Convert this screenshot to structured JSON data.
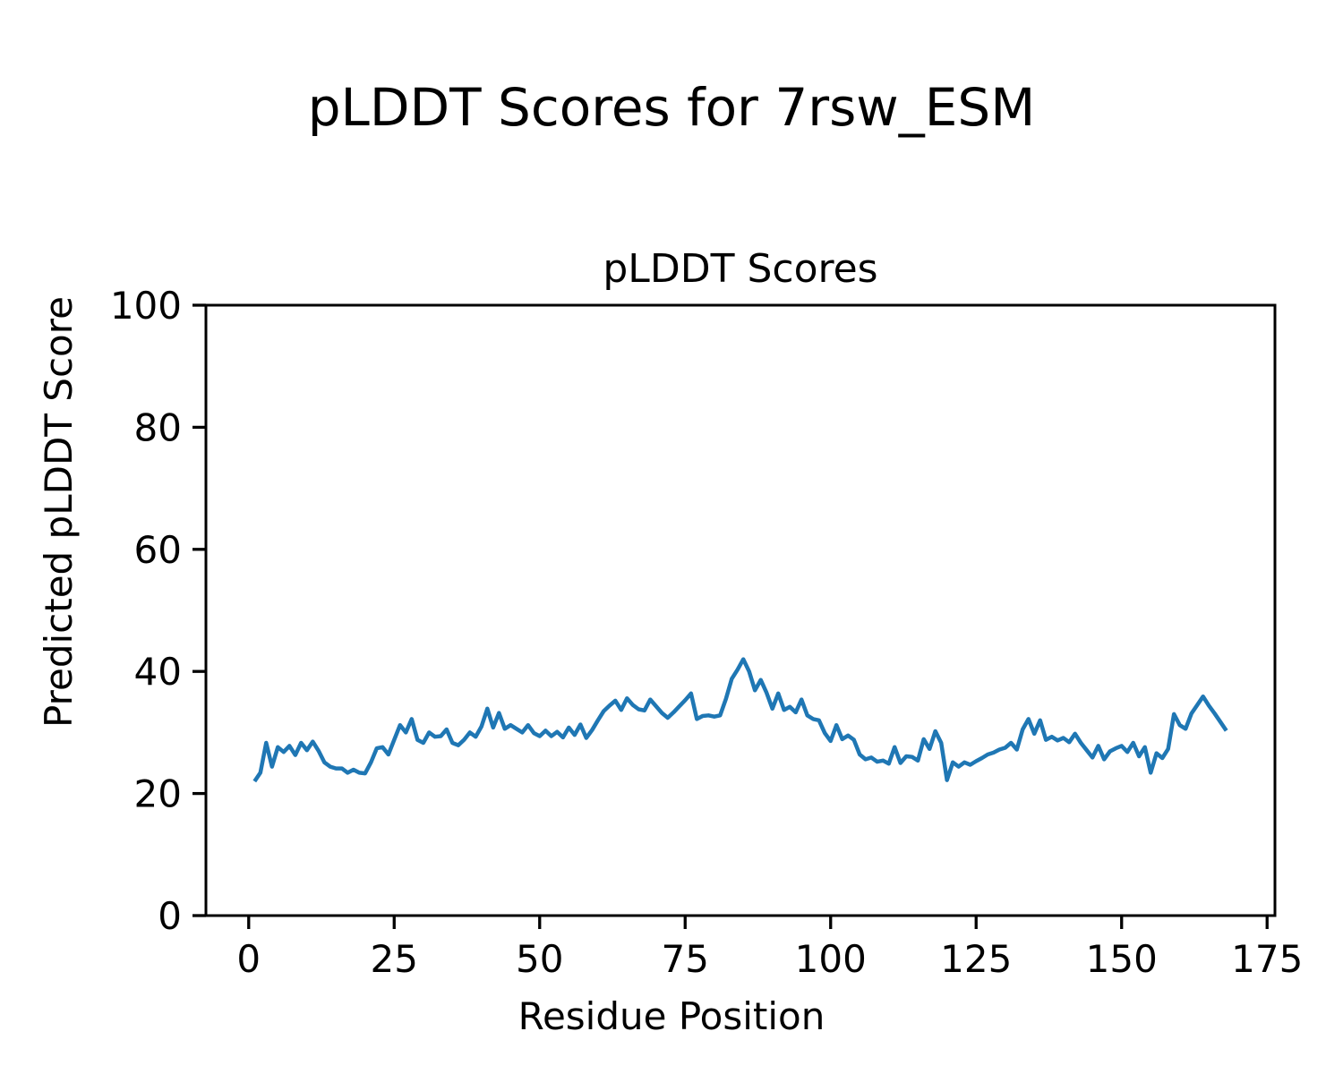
{
  "figure_title": "pLDDT Scores for 7rsw_ESM",
  "colors": {
    "line": "#1f77b4",
    "text": "#000000",
    "background": "#ffffff",
    "axes": "#000000"
  },
  "chart_data": {
    "type": "line",
    "title": "pLDDT Scores",
    "xlabel": "Residue Position",
    "ylabel": "Predicted pLDDT Score",
    "xlim": [
      -7.35,
      176.35
    ],
    "ylim": [
      0,
      100
    ],
    "x_ticks": [
      0,
      25,
      50,
      75,
      100,
      125,
      150,
      175
    ],
    "y_ticks": [
      0,
      20,
      40,
      60,
      80,
      100
    ],
    "grid": false,
    "legend_position": "none",
    "series": [
      {
        "name": "pLDDT",
        "color": "#1f77b4",
        "x": [
          1,
          2,
          3,
          4,
          5,
          6,
          7,
          8,
          9,
          10,
          11,
          12,
          13,
          14,
          15,
          16,
          17,
          18,
          19,
          20,
          21,
          22,
          23,
          24,
          25,
          26,
          27,
          28,
          29,
          30,
          31,
          32,
          33,
          34,
          35,
          36,
          37,
          38,
          39,
          40,
          41,
          42,
          43,
          44,
          45,
          46,
          47,
          48,
          49,
          50,
          51,
          52,
          53,
          54,
          55,
          56,
          57,
          58,
          59,
          60,
          61,
          62,
          63,
          64,
          65,
          66,
          67,
          68,
          69,
          70,
          71,
          72,
          73,
          74,
          75,
          76,
          77,
          78,
          79,
          80,
          81,
          82,
          83,
          84,
          85,
          86,
          87,
          88,
          89,
          90,
          91,
          92,
          93,
          94,
          95,
          96,
          97,
          98,
          99,
          100,
          101,
          102,
          103,
          104,
          105,
          106,
          107,
          108,
          109,
          110,
          111,
          112,
          113,
          114,
          115,
          116,
          117,
          118,
          119,
          120,
          121,
          122,
          123,
          124,
          125,
          126,
          127,
          128,
          129,
          130,
          131,
          132,
          133,
          134,
          135,
          136,
          137,
          138,
          139,
          140,
          141,
          142,
          143,
          144,
          145,
          146,
          147,
          148,
          149,
          150,
          151,
          152,
          153,
          154,
          155,
          156,
          157,
          158,
          159,
          160,
          161,
          162,
          163,
          164,
          165,
          166,
          167,
          168
        ],
        "y": [
          22.0,
          23.4,
          28.3,
          24.4,
          27.6,
          26.8,
          27.8,
          26.3,
          28.3,
          27.1,
          28.5,
          27.0,
          25.1,
          24.4,
          24.1,
          24.1,
          23.4,
          23.9,
          23.4,
          23.3,
          25.1,
          27.4,
          27.6,
          26.4,
          28.8,
          31.2,
          30.0,
          32.2,
          28.8,
          28.3,
          30.0,
          29.3,
          29.4,
          30.5,
          28.3,
          27.9,
          28.8,
          30.0,
          29.3,
          31.0,
          33.9,
          30.8,
          33.2,
          30.6,
          31.2,
          30.6,
          30.0,
          31.2,
          29.9,
          29.4,
          30.3,
          29.4,
          30.1,
          29.2,
          30.8,
          29.6,
          31.3,
          29.1,
          30.4,
          32.0,
          33.5,
          34.4,
          35.2,
          33.7,
          35.6,
          34.5,
          33.8,
          33.6,
          35.4,
          34.3,
          33.2,
          32.4,
          33.3,
          34.3,
          35.3,
          36.4,
          32.2,
          32.7,
          32.8,
          32.6,
          32.8,
          35.5,
          38.8,
          40.3,
          42.0,
          40.0,
          36.9,
          38.6,
          36.5,
          33.9,
          36.4,
          33.7,
          34.2,
          33.3,
          35.4,
          32.8,
          32.2,
          32.0,
          29.9,
          28.6,
          31.2,
          28.9,
          29.5,
          28.8,
          26.4,
          25.6,
          25.9,
          25.2,
          25.4,
          24.9,
          27.6,
          25.0,
          26.1,
          26.0,
          25.4,
          28.9,
          27.3,
          30.2,
          28.3,
          22.2,
          25.1,
          24.4,
          25.1,
          24.7,
          25.3,
          25.8,
          26.4,
          26.7,
          27.2,
          27.5,
          28.3,
          27.2,
          30.5,
          32.2,
          29.8,
          32.0,
          28.8,
          29.3,
          28.7,
          29.1,
          28.4,
          29.8,
          28.3,
          27.1,
          25.9,
          27.8,
          25.6,
          26.9,
          27.4,
          27.8,
          26.8,
          28.3,
          26.1,
          27.6,
          23.4,
          26.6,
          25.8,
          27.3,
          33.0,
          31.2,
          30.6,
          33.1,
          34.5,
          35.9,
          34.4,
          33.1,
          31.7,
          30.3
        ]
      }
    ]
  }
}
